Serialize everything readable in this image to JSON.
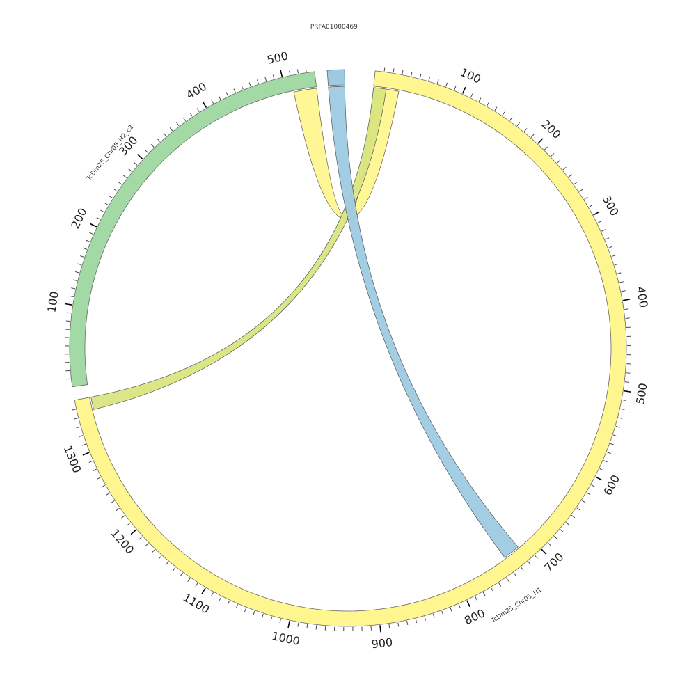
{
  "diagram": {
    "type": "circos",
    "segments": [
      {
        "id": "h1",
        "name": "TcDm25_Chr05_H1",
        "length": 1360,
        "color": "#fff68f",
        "tick_labels": [
          "100",
          "200",
          "300",
          "400",
          "500",
          "600",
          "700",
          "800",
          "900",
          "1000",
          "1100",
          "1200",
          "1300"
        ]
      },
      {
        "id": "h2c2",
        "name": "TcDm25_Chr05_H2_c2",
        "length": 540,
        "color": "#a3d9a5",
        "tick_labels": [
          "100",
          "200",
          "300",
          "400",
          "500"
        ]
      },
      {
        "id": "prfa",
        "name": "PRFA01000469",
        "length": 20,
        "color": "#9ecae1",
        "tick_labels": []
      }
    ],
    "links": [
      {
        "name": "link-h1-self",
        "color": "#fff68f",
        "source": {
          "segment": "h1",
          "start": 0,
          "end": 30
        },
        "target": {
          "segment": "h2c2",
          "start": 510,
          "end": 540
        }
      },
      {
        "name": "link-h1-green",
        "color": "#d9e57f",
        "source": {
          "segment": "h1",
          "start": 0,
          "end": 15
        },
        "target": {
          "segment": "h1",
          "start": 1345,
          "end": 1360
        }
      },
      {
        "name": "link-prfa-h1",
        "color": "#9ecae1",
        "source": {
          "segment": "prfa",
          "start": 0,
          "end": 20
        },
        "target": {
          "segment": "h1",
          "start": 718,
          "end": 738
        }
      }
    ]
  }
}
